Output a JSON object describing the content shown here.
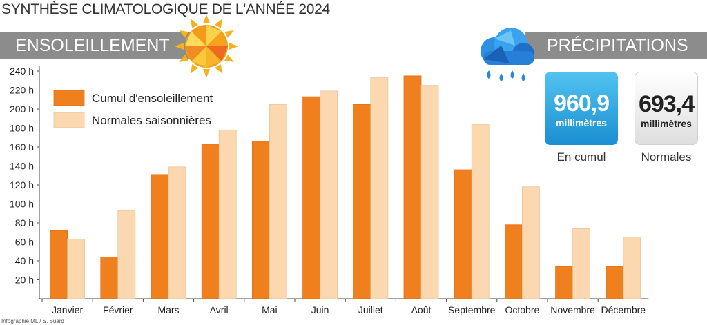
{
  "title": "SYNTHÈSE CLIMATOLOGIQUE DE L'ANNÉE 2024",
  "sunshine_section": {
    "label": "ENSOLEILLEMENT",
    "icon": "sun-icon"
  },
  "precipitation_section": {
    "label": "PRÉCIPITATIONS",
    "icon": "rain-cloud-icon",
    "cumul": {
      "value": "960,9",
      "unit": "millimètres",
      "caption": "En cumul"
    },
    "normal": {
      "value": "693,4",
      "unit": "millimètres",
      "caption": "Normales"
    }
  },
  "credit": "Infographie ML / S. Suard",
  "colors": {
    "primary_series": "#f07f1e",
    "normal_series": "#fcd8b0",
    "band": "#8c8c8c",
    "precip_box": "#1a8fd2"
  },
  "chart_data": {
    "type": "bar",
    "categories": [
      "Janvier",
      "Février",
      "Mars",
      "Avril",
      "Mai",
      "Juin",
      "Juillet",
      "Août",
      "Septembre",
      "Octobre",
      "Novembre",
      "Décembre"
    ],
    "series": [
      {
        "name": "Cumul d'ensoleillement",
        "values": [
          72,
          44,
          131,
          163,
          166,
          213,
          205,
          235,
          136,
          78,
          34,
          34
        ]
      },
      {
        "name": "Normales saisonnières",
        "values": [
          63,
          93,
          139,
          178,
          205,
          219,
          233,
          225,
          184,
          118,
          74,
          65
        ]
      }
    ],
    "y_ticks": [
      "20 h",
      "40 h",
      "60 h",
      "80 h",
      "100 h",
      "120 h",
      "140 h",
      "160 h",
      "180 h",
      "200 h",
      "220 h",
      "240 h"
    ],
    "y_tick_values": [
      20,
      40,
      60,
      80,
      100,
      120,
      140,
      160,
      180,
      200,
      220,
      240
    ],
    "ylim": [
      0,
      240
    ],
    "legend_position": "top-left",
    "grid": false
  }
}
